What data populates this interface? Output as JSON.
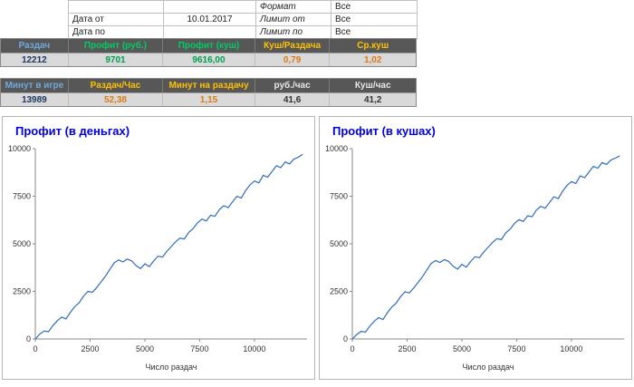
{
  "colors": {
    "header_bg": "#575757",
    "value_row_bg": "#d9d9d9",
    "header_blue": "#6fa8dc",
    "header_green": "#00cc66",
    "header_gold": "#ffc000",
    "value_green": "#00a050",
    "value_orange": "#e07818",
    "value_navy": "#1f3864",
    "chart_title_blue": "#0000e6",
    "chart_line_blue": "#2f6bc0"
  },
  "filters": {
    "rows": [
      {
        "c1": "",
        "c2": "",
        "c3": "Формат",
        "c4": "Все"
      },
      {
        "c1": "Дата от",
        "c2": "10.01.2017",
        "c3": "Лимит от",
        "c4": "Все"
      },
      {
        "c1": "Дата по",
        "c2": "",
        "c3": "Лимит по",
        "c4": "Все"
      }
    ]
  },
  "stats1": {
    "headers": [
      "Раздач",
      "Профит (руб.)",
      "Профит (куш)",
      "Куш/Раздача",
      "Ср.куш"
    ],
    "values": [
      "12212",
      "9701",
      "9616,00",
      "0,79",
      "1,02"
    ]
  },
  "stats2": {
    "headers": [
      "Минут в игре",
      "Раздач/Час",
      "Минут на раздачу",
      "руб./час",
      "Куш/час"
    ],
    "values": [
      "13989",
      "52,38",
      "1,15",
      "41,6",
      "41,2"
    ]
  },
  "chart_data": [
    {
      "type": "line",
      "title": "Профит (в деньгах)",
      "xlabel": "Число раздач",
      "ylabel": "",
      "xlim": [
        0,
        12400
      ],
      "ylim": [
        0,
        10000
      ],
      "xticks": [
        0,
        2500,
        5000,
        7500,
        10000
      ],
      "yticks": [
        0,
        2500,
        5000,
        7500,
        10000
      ],
      "grid": false,
      "legend": "none",
      "line_color": "#2f6bc0",
      "x_start": 0,
      "x_step": 200,
      "values": [
        0,
        250,
        420,
        380,
        700,
        950,
        1150,
        1050,
        1400,
        1700,
        1900,
        2250,
        2500,
        2450,
        2700,
        3000,
        3300,
        3650,
        4000,
        4150,
        4050,
        4200,
        4100,
        3850,
        3700,
        3950,
        3800,
        4100,
        4350,
        4300,
        4600,
        4850,
        5100,
        5300,
        5250,
        5600,
        5800,
        6100,
        6300,
        6200,
        6500,
        6450,
        6800,
        7000,
        6900,
        7200,
        7500,
        7400,
        7800,
        8100,
        8300,
        8200,
        8600,
        8500,
        8800,
        9100,
        9000,
        9300,
        9200,
        9450,
        9550,
        9701
      ]
    },
    {
      "type": "line",
      "title": "Профит (в кушах)",
      "xlabel": "Число раздач",
      "ylabel": "",
      "xlim": [
        0,
        12400
      ],
      "ylim": [
        0,
        10000
      ],
      "xticks": [
        0,
        2500,
        5000,
        7500,
        10000
      ],
      "yticks": [
        0,
        2500,
        5000,
        7500,
        10000
      ],
      "grid": false,
      "legend": "none",
      "line_color": "#2f6bc0",
      "x_start": 0,
      "x_step": 200,
      "values": [
        0,
        230,
        400,
        360,
        680,
        930,
        1120,
        1020,
        1380,
        1680,
        1880,
        2220,
        2480,
        2420,
        2680,
        2970,
        3270,
        3620,
        3970,
        4120,
        4020,
        4170,
        4070,
        3820,
        3670,
        3920,
        3770,
        4070,
        4320,
        4270,
        4570,
        4820,
        5070,
        5270,
        5220,
        5570,
        5770,
        6070,
        6270,
        6170,
        6470,
        6420,
        6770,
        6970,
        6870,
        7170,
        7470,
        7370,
        7770,
        8070,
        8270,
        8170,
        8570,
        8470,
        8770,
        9070,
        8970,
        9270,
        9170,
        9400,
        9500,
        9616
      ]
    }
  ]
}
